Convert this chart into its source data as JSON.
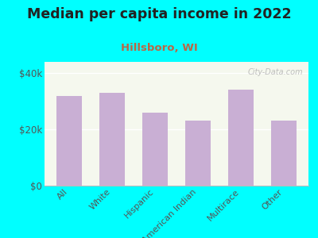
{
  "title": "Median per capita income in 2022",
  "subtitle": "Hillsboro, WI",
  "categories": [
    "All",
    "White",
    "Hispanic",
    "American Indian",
    "Multirace",
    "Other"
  ],
  "values": [
    32000,
    33000,
    26000,
    23000,
    34000,
    23000
  ],
  "bar_color": "#c9afd4",
  "background_color": "#00FFFF",
  "plot_bg_top": "#e8f0d8",
  "plot_bg_bottom": "#f5f8ee",
  "title_fontsize": 12.5,
  "subtitle_fontsize": 9.5,
  "subtitle_color": "#bb6644",
  "yticks": [
    0,
    20000,
    40000
  ],
  "ytick_labels": [
    "$0",
    "$20k",
    "$40k"
  ],
  "ylim": [
    0,
    44000
  ],
  "watermark": "City-Data.com"
}
